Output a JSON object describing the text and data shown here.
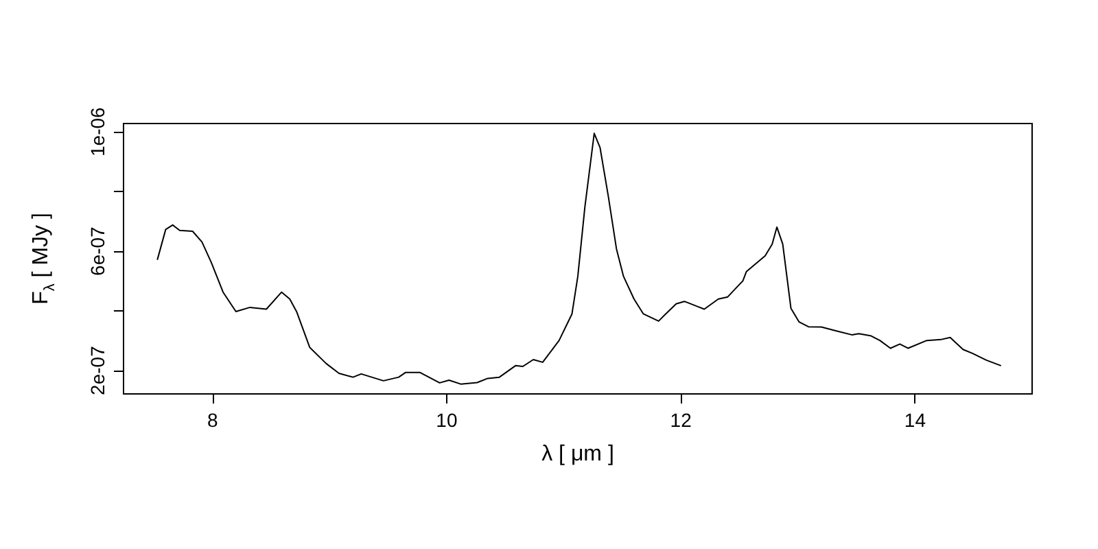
{
  "chart_data": {
    "type": "line",
    "xlabel": "λ [ μm ]",
    "ylabel": "F$_{λ}$ [ MJy ]",
    "x": [
      7.53,
      7.6,
      7.66,
      7.72,
      7.83,
      7.91,
      7.99,
      8.09,
      8.2,
      8.32,
      8.46,
      8.59,
      8.66,
      8.72,
      8.83,
      8.97,
      9.08,
      9.2,
      9.27,
      9.36,
      9.46,
      9.59,
      9.65,
      9.77,
      9.94,
      10.02,
      10.12,
      10.26,
      10.35,
      10.45,
      10.59,
      10.65,
      10.74,
      10.82,
      10.96,
      11.07,
      11.12,
      11.18,
      11.26,
      11.31,
      11.38,
      11.45,
      11.51,
      11.6,
      11.68,
      11.81,
      11.86,
      11.96,
      12.03,
      12.2,
      12.32,
      12.4,
      12.53,
      12.56,
      12.72,
      12.78,
      12.82,
      12.87,
      12.9,
      12.94,
      13.01,
      13.09,
      13.2,
      13.34,
      13.46,
      13.52,
      13.62,
      13.7,
      13.79,
      13.87,
      13.94,
      14.1,
      14.22,
      14.3,
      14.41,
      14.49,
      14.61,
      14.73
    ],
    "values": [
      5.73e-07,
      6.73e-07,
      6.88e-07,
      6.7e-07,
      6.67e-07,
      6.31e-07,
      5.62e-07,
      4.63e-07,
      3.98e-07,
      4.12e-07,
      4.06e-07,
      4.63e-07,
      4.4e-07,
      3.96e-07,
      2.78e-07,
      2.24e-07,
      1.91e-07,
      1.78e-07,
      1.89e-07,
      1.78e-07,
      1.66e-07,
      1.78e-07,
      1.94e-07,
      1.94e-07,
      1.59e-07,
      1.68e-07,
      1.55e-07,
      1.6e-07,
      1.74e-07,
      1.78e-07,
      2.17e-07,
      2.14e-07,
      2.37e-07,
      2.28e-07,
      3.01e-07,
      3.9e-07,
      5.16e-07,
      7.47e-07,
      9.95e-07,
      9.47e-07,
      7.85e-07,
      6.08e-07,
      5.16e-07,
      4.4e-07,
      3.9e-07,
      3.66e-07,
      3.86e-07,
      4.24e-07,
      4.32e-07,
      4.06e-07,
      4.4e-07,
      4.47e-07,
      5.01e-07,
      5.32e-07,
      5.85e-07,
      6.24e-07,
      6.81e-07,
      6.24e-07,
      5.32e-07,
      4.09e-07,
      3.63e-07,
      3.47e-07,
      3.46e-07,
      3.32e-07,
      3.2e-07,
      3.24e-07,
      3.17e-07,
      3.01e-07,
      2.75e-07,
      2.89e-07,
      2.75e-07,
      3.01e-07,
      3.04e-07,
      3.11e-07,
      2.71e-07,
      2.58e-07,
      2.35e-07,
      2.17e-07
    ],
    "color": "#000000",
    "xlim": [
      7.24,
      15.0
    ],
    "ylim": [
      1.22e-07,
      1.028e-06
    ],
    "xticks": [
      8,
      10,
      12,
      14
    ],
    "yticks": [
      {
        "value": 2e-07,
        "label": "2e-07"
      },
      {
        "value": 4e-07,
        "label": null
      },
      {
        "value": 6e-07,
        "label": "6e-07"
      },
      {
        "value": 8e-07,
        "label": null
      },
      {
        "value": 1e-06,
        "label": "1e-06"
      }
    ],
    "grid": false,
    "marker": "none",
    "line_style": "solid"
  }
}
